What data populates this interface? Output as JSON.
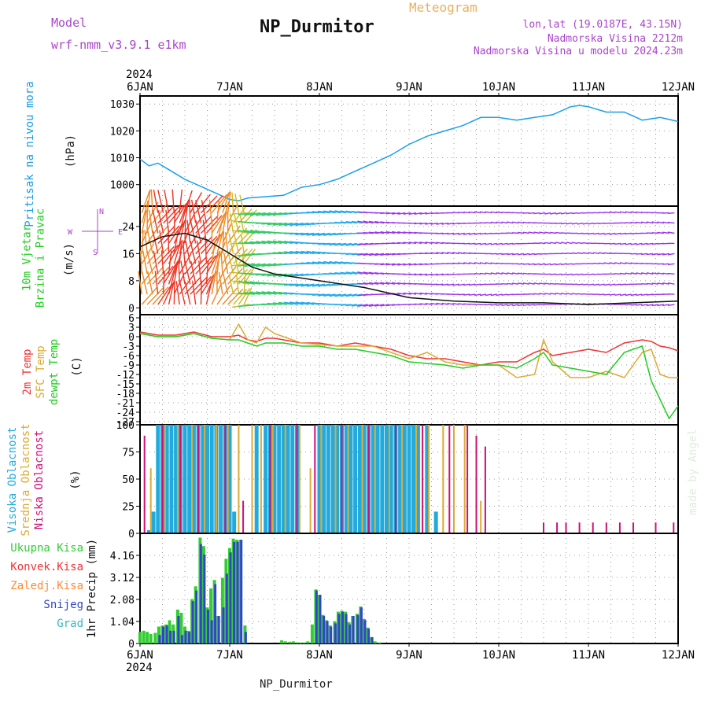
{
  "header": {
    "title": "NP_Durmitor",
    "model_label": "Model",
    "model_name": "wrf-nmm_v3.9.1 e1km",
    "product": "Meteogram",
    "location": "lon,lat (19.0187E, 43.15N)",
    "elevation": "Nadmorska Visina 2212m",
    "model_elevation": "Nadmorska Visina u modelu 2024.23m",
    "footer_title": "NP_Durmitor",
    "credit": "made by Angel"
  },
  "colors": {
    "pressure": "#1aa0e6",
    "wind_label": "#22cc22",
    "t2m": "#ee3333",
    "sfc": "#ddaa33",
    "dewpt": "#22cc22",
    "cloud_high": "#22aadd",
    "cloud_mid": "#ddaa33",
    "cloud_low": "#cc1177",
    "precip_total": "#33cc33",
    "precip_conv": "#ee3333",
    "precip_frz": "#ff8833",
    "precip_snow": "#3344cc",
    "precip_graupel": "#33bbbb",
    "header_purple": "#aa44cc",
    "header_orange": "#e8b060",
    "credit": "#ddeedd"
  },
  "time_axis": {
    "year": "2024",
    "ticks": [
      "6JAN",
      "7JAN",
      "8JAN",
      "9JAN",
      "10JAN",
      "11JAN",
      "12JAN"
    ]
  },
  "chart_data": [
    {
      "type": "line",
      "panel": "pressure",
      "ylabel_lines": [
        "Pritisak na nivou mora"
      ],
      "unit": "(hPa)",
      "yticks": [
        1000,
        1010,
        1020,
        1030
      ],
      "ylim": [
        992,
        1033
      ],
      "x_unit": "days since 6JAN 00h",
      "grid": true,
      "x": [
        0,
        0.1,
        0.2,
        0.3,
        0.5,
        0.7,
        0.9,
        1.0,
        1.1,
        1.2,
        1.4,
        1.6,
        1.8,
        2.0,
        2.2,
        2.4,
        2.6,
        2.8,
        3.0,
        3.2,
        3.4,
        3.6,
        3.8,
        3.9,
        4.0,
        4.2,
        4.4,
        4.6,
        4.8,
        4.9,
        5.0,
        5.2,
        5.4,
        5.6,
        5.8,
        6.0
      ],
      "series": [
        {
          "values": [
            1009.5,
            1007,
            1008,
            1006,
            1002,
            999,
            996,
            994.5,
            994,
            995,
            995.5,
            996,
            999,
            1000,
            1002,
            1005,
            1008,
            1011,
            1015,
            1018,
            1020,
            1022,
            1025,
            1025,
            1025,
            1024,
            1025,
            1026,
            1029,
            1029.5,
            1029,
            1027,
            1027,
            1024,
            1025,
            1023.5
          ]
        }
      ]
    },
    {
      "type": "line",
      "panel": "wind",
      "ylabel_lines": [
        "10m Vjetar",
        "Brzina i Pravac"
      ],
      "unit": "(m/s)",
      "direction_key": [
        "N",
        "W",
        "E",
        "S"
      ],
      "yticks": [
        0,
        8,
        16,
        24
      ],
      "ylim": [
        -2,
        30
      ],
      "x_unit": "days since 6JAN 00h",
      "grid": true,
      "x": [
        0,
        0.25,
        0.5,
        0.75,
        1.0,
        1.25,
        1.5,
        1.75,
        2.0,
        2.5,
        3.0,
        3.5,
        4.0,
        4.5,
        5.0,
        5.5,
        6.0
      ],
      "series": [
        {
          "values": [
            18,
            21,
            22,
            20,
            16,
            12,
            10,
            9,
            8,
            6,
            3,
            2,
            1.5,
            1.5,
            1,
            1.5,
            2
          ]
        }
      ]
    },
    {
      "type": "line",
      "panel": "temperature",
      "ylabel_lines": [
        "2m Temp",
        "SFC Temp",
        "dewpt Temp"
      ],
      "unit": "(C)",
      "yticks": [
        6,
        3,
        0,
        -3,
        -6,
        -9,
        -12,
        -15,
        -18,
        -21,
        -24,
        -27
      ],
      "ylim": [
        -28,
        7
      ],
      "x_unit": "days since 6JAN 00h",
      "grid": true,
      "x": [
        0,
        0.2,
        0.4,
        0.6,
        0.8,
        1.0,
        1.1,
        1.2,
        1.3,
        1.4,
        1.5,
        1.6,
        1.8,
        2.0,
        2.2,
        2.4,
        2.6,
        2.8,
        3.0,
        3.2,
        3.4,
        3.6,
        3.8,
        4.0,
        4.2,
        4.4,
        4.5,
        4.6,
        4.8,
        5.0,
        5.2,
        5.4,
        5.6,
        5.7,
        5.8,
        5.9,
        6.0
      ],
      "series": [
        {
          "name": "2m Temp",
          "values": [
            1.5,
            0.5,
            0.5,
            1.5,
            0,
            0,
            0.5,
            -1,
            -1.5,
            -0.5,
            -0.5,
            -1,
            -2,
            -2,
            -3,
            -2,
            -3,
            -4,
            -6,
            -7,
            -7,
            -8,
            -9,
            -8,
            -8,
            -5,
            -4,
            -6,
            -5,
            -4,
            -5,
            -2,
            -1,
            -1.5,
            -3,
            -3.5,
            -4.5
          ]
        },
        {
          "name": "SFC Temp",
          "values": [
            1,
            0,
            0,
            1,
            -0.5,
            -1,
            4,
            -1,
            -2,
            3,
            1,
            0,
            -2,
            -2.5,
            -3,
            -3,
            -3,
            -5,
            -7,
            -5,
            -8,
            -9,
            -9,
            -9,
            -13,
            -12,
            -1,
            -8,
            -13,
            -13,
            -11,
            -13,
            -5,
            -4,
            -12,
            -13,
            -13
          ]
        },
        {
          "name": "dewpt Temp",
          "values": [
            1,
            0,
            0,
            1,
            -0.5,
            -1,
            -1,
            -2,
            -3,
            -2,
            -2,
            -2,
            -3,
            -3,
            -4,
            -4,
            -5,
            -6,
            -8,
            -8.5,
            -9,
            -10,
            -9,
            -9,
            -10,
            -7,
            -5,
            -9,
            -10,
            -11,
            -12,
            -5,
            -3,
            -14,
            -20,
            -26,
            -22
          ]
        }
      ]
    },
    {
      "type": "bar",
      "panel": "clouds",
      "ylabel_lines": [
        "Visoka Oblacnost",
        "Srednja Oblacnost",
        "Niska Oblacnost"
      ],
      "unit": "(%)",
      "yticks": [
        0,
        25,
        50,
        75,
        100
      ],
      "ylim": [
        0,
        100
      ],
      "x_unit": "days since 6JAN 00h",
      "grid": true,
      "series": [
        {
          "name": "Visoka Oblacnost",
          "x": [
            0.1,
            0.15,
            0.2,
            0.25,
            0.3,
            0.35,
            0.4,
            0.45,
            0.5,
            0.55,
            0.6,
            0.65,
            0.7,
            0.75,
            0.8,
            0.85,
            0.9,
            0.95,
            1.0,
            1.05,
            1.3,
            1.4,
            1.45,
            1.5,
            1.55,
            1.6,
            1.65,
            1.7,
            1.75,
            2.0,
            2.05,
            2.1,
            2.15,
            2.2,
            2.25,
            2.3,
            2.35,
            2.4,
            2.45,
            2.5,
            2.55,
            2.6,
            2.65,
            2.7,
            2.75,
            2.8,
            2.85,
            2.9,
            2.95,
            3.0,
            3.05,
            3.1,
            3.2,
            3.3
          ],
          "values": [
            3,
            20,
            100,
            100,
            100,
            100,
            100,
            100,
            100,
            100,
            100,
            100,
            100,
            100,
            100,
            100,
            100,
            100,
            100,
            20,
            100,
            100,
            100,
            100,
            100,
            100,
            100,
            100,
            100,
            100,
            100,
            100,
            100,
            100,
            100,
            100,
            100,
            100,
            100,
            100,
            100,
            100,
            100,
            100,
            100,
            100,
            100,
            100,
            100,
            100,
            100,
            100,
            100,
            20
          ]
        },
        {
          "name": "Srednja Oblacnost",
          "x": [
            0.12,
            0.28,
            0.42,
            0.58,
            0.72,
            0.85,
            0.98,
            1.1,
            1.25,
            1.35,
            1.48,
            1.62,
            1.78,
            1.9,
            2.02,
            2.18,
            2.32,
            2.48,
            2.62,
            2.78,
            2.92,
            3.08,
            3.22,
            3.38,
            3.5,
            3.62,
            3.8
          ],
          "values": [
            60,
            100,
            100,
            100,
            100,
            100,
            100,
            100,
            100,
            100,
            100,
            100,
            100,
            60,
            100,
            100,
            100,
            100,
            100,
            100,
            100,
            100,
            100,
            100,
            100,
            100,
            30
          ]
        },
        {
          "name": "Niska Oblacnost",
          "x": [
            0.05,
            0.25,
            0.45,
            0.65,
            0.95,
            1.15,
            1.45,
            1.75,
            1.95,
            2.25,
            2.55,
            2.85,
            3.15,
            3.45,
            3.65,
            3.75,
            3.85,
            4.0,
            4.5,
            4.65,
            4.75,
            4.9,
            5.05,
            5.2,
            5.35,
            5.5,
            5.75,
            5.95
          ],
          "values": [
            90,
            100,
            100,
            100,
            100,
            30,
            100,
            100,
            100,
            100,
            100,
            100,
            100,
            100,
            100,
            90,
            80,
            1,
            10,
            10,
            10,
            10,
            10,
            10,
            10,
            10,
            10,
            10
          ]
        }
      ]
    },
    {
      "type": "bar",
      "panel": "precip",
      "ylabel_lines": [
        "1hr Precip (mm)"
      ],
      "legend": [
        "Ukupna Kisa",
        "Konvek.Kisa",
        "Zaledj.Kisa",
        "Snijeg",
        "Grad"
      ],
      "yticks": [
        0,
        1.04,
        2.08,
        3.12,
        4.16
      ],
      "ylim": [
        0,
        5.2
      ],
      "x_unit": "days since 6JAN 00h",
      "grid": true,
      "series": [
        {
          "name": "Ukupna Kisa",
          "x": [
            0.0,
            0.04,
            0.08,
            0.12,
            0.17,
            0.21,
            0.25,
            0.29,
            0.33,
            0.37,
            0.42,
            0.46,
            0.5,
            0.54,
            0.58,
            0.62,
            0.67,
            0.71,
            0.75,
            0.79,
            0.83,
            0.87,
            0.92,
            0.96,
            1.0,
            1.04,
            1.08,
            1.12,
            1.17,
            1.58,
            1.62,
            1.67,
            1.71,
            1.75,
            1.79,
            1.83,
            1.87,
            1.92,
            1.96,
            2.0,
            2.04,
            2.08,
            2.12,
            2.17,
            2.21,
            2.25,
            2.29,
            2.33,
            2.37,
            2.42,
            2.46,
            2.5,
            2.54,
            2.58,
            2.62,
            2.67
          ],
          "values": [
            0.55,
            0.6,
            0.55,
            0.45,
            0.5,
            0.8,
            0.85,
            0.9,
            1.1,
            0.9,
            1.6,
            1.45,
            0.8,
            0.6,
            2.1,
            2.7,
            5.0,
            4.6,
            1.7,
            2.6,
            3.0,
            1.3,
            3.1,
            4.0,
            4.5,
            4.95,
            4.9,
            4.9,
            0.85,
            0.15,
            0.1,
            0.08,
            0.1,
            0.05,
            0.05,
            0.05,
            0.1,
            0.9,
            2.55,
            2.3,
            1.35,
            1.1,
            0.85,
            1.05,
            1.5,
            1.55,
            1.5,
            1.0,
            1.3,
            1.4,
            1.75,
            1.15,
            0.75,
            0.3,
            0.1,
            0.05
          ]
        },
        {
          "name": "Snijeg",
          "x": [
            0.21,
            0.25,
            0.29,
            0.33,
            0.37,
            0.42,
            0.46,
            0.5,
            0.54,
            0.58,
            0.62,
            0.67,
            0.71,
            0.75,
            0.79,
            0.83,
            0.87,
            0.92,
            0.96,
            1.0,
            1.04,
            1.08,
            1.12,
            1.17,
            1.96,
            2.0,
            2.04,
            2.08,
            2.12,
            2.17,
            2.21,
            2.25,
            2.29,
            2.33,
            2.37,
            2.42,
            2.46,
            2.5,
            2.54,
            2.58
          ],
          "values": [
            0.4,
            0.8,
            0.85,
            0.6,
            0.6,
            1.3,
            0.4,
            0.6,
            0.55,
            2.0,
            2.5,
            4.7,
            4.2,
            1.6,
            1.1,
            2.8,
            1.3,
            1.7,
            3.3,
            4.3,
            4.8,
            4.8,
            4.9,
            0.55,
            2.5,
            2.3,
            1.3,
            1.05,
            0.8,
            0.95,
            1.4,
            1.5,
            1.4,
            0.9,
            1.3,
            1.35,
            1.7,
            1.1,
            0.7,
            0.3
          ]
        }
      ]
    }
  ]
}
